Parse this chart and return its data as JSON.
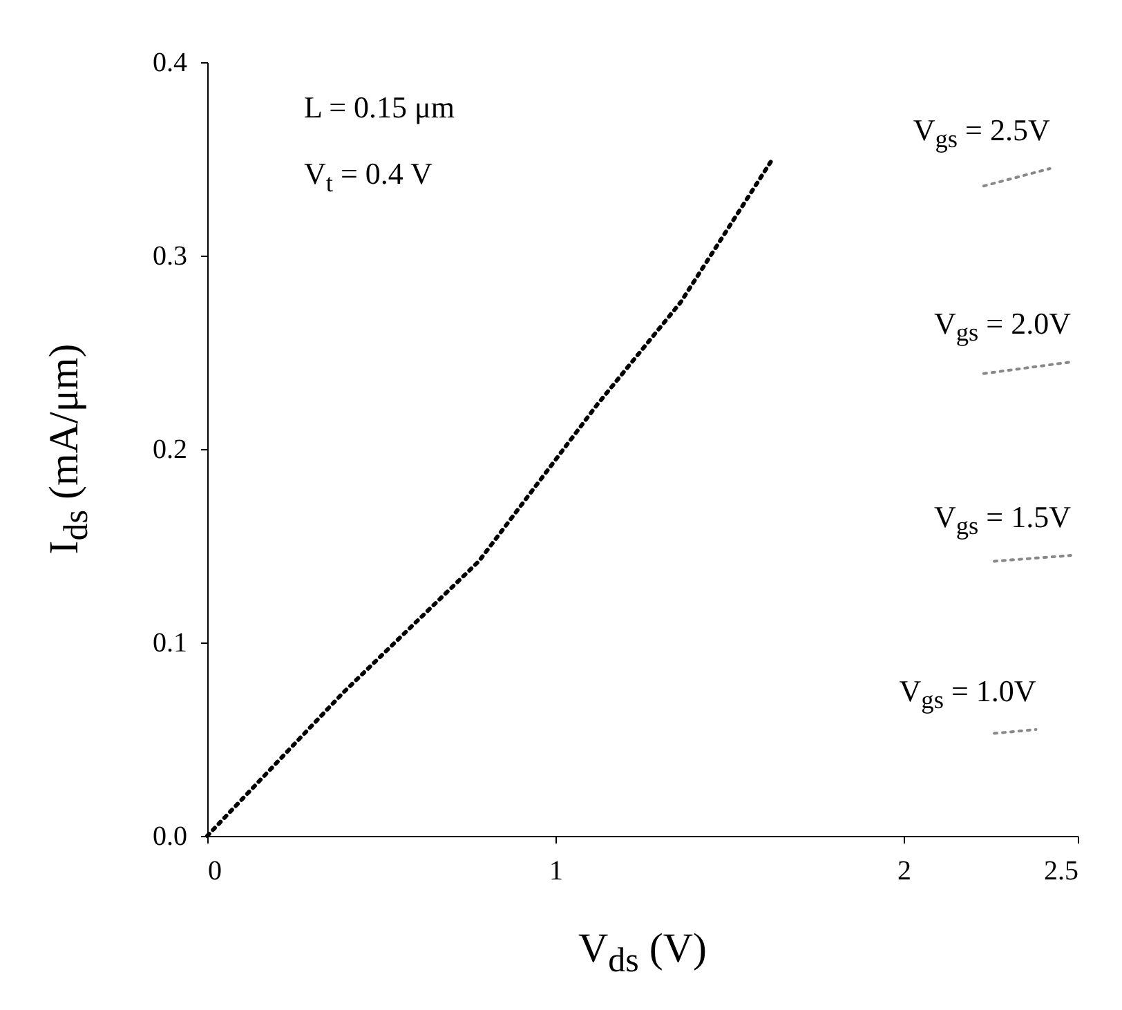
{
  "chart_data": {
    "type": "line",
    "xlabel": "V$_{ds}$ (V)",
    "ylabel": "I$_{ds}$ (mA/μm)",
    "xlim": [
      0,
      2.5
    ],
    "xticks": [
      0,
      1,
      2,
      2.5
    ],
    "ylim": [
      0,
      0.4
    ],
    "yticks": [
      {
        "value": 0,
        "label": "0.0"
      },
      {
        "value": 0.1,
        "label": "0.1"
      },
      {
        "value": 0.2,
        "label": "0.2"
      },
      {
        "value": 0.3,
        "label": "0.3"
      },
      {
        "value": 0.4,
        "label": "0.4"
      }
    ],
    "grid": false,
    "line_style": "dotted",
    "marker": "none",
    "annotations": [
      "L = 0.15 μm",
      "V$_{t}$ = 0.4 V"
    ],
    "series": [
      {
        "color": "#000000",
        "x": [
          0,
          0.39,
          0.78,
          1.12,
          1.36,
          1.62
        ],
        "values": [
          0,
          0.074,
          0.142,
          0.223,
          0.276,
          0.349
        ]
      },
      {
        "name": "V$_{gs}$ = 2.5V",
        "color": "#888888",
        "x": [
          2.23,
          2.42
        ],
        "values": [
          0.336,
          0.345
        ]
      },
      {
        "name": "V$_{gs}$ = 2.0V",
        "color": "#888888",
        "x": [
          2.23,
          2.48
        ],
        "values": [
          0.239,
          0.245
        ]
      },
      {
        "name": "V$_{gs}$ = 1.5V",
        "color": "#888888",
        "x": [
          2.26,
          2.48
        ],
        "values": [
          0.142,
          0.145
        ]
      },
      {
        "name": "V$_{gs}$ = 1.0V",
        "color": "#888888",
        "x": [
          2.26,
          2.38
        ],
        "values": [
          0.053,
          0.055
        ]
      }
    ]
  }
}
